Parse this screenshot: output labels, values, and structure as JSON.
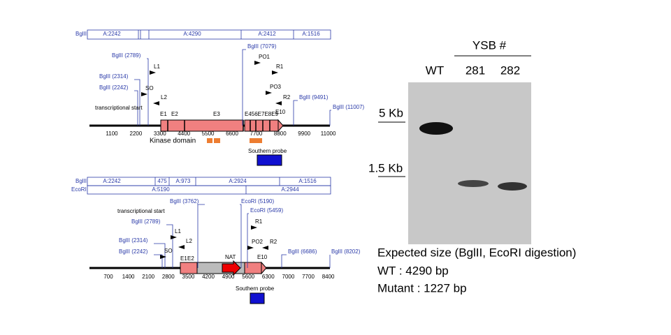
{
  "top_map": {
    "enzyme": "BglII",
    "fragments": [
      "A:2242",
      "A:4290",
      "A:2412",
      "A:1516"
    ],
    "sites": [
      "BglII (2789)",
      "BglII (2314)",
      "BglII (2242)",
      "BglII (7079)",
      "BglII (9491)",
      "BglII (11007)"
    ],
    "primers": [
      "L1",
      "SO",
      "L2",
      "PO1",
      "R1",
      "PO3",
      "R2"
    ],
    "transcriptional_start": "transcriptional start",
    "exons": [
      "E1",
      "E2",
      "E3",
      "E456E7E8E9",
      "E10"
    ],
    "scale": [
      1100,
      2200,
      3300,
      4400,
      5500,
      6600,
      7700,
      8800,
      9900,
      11000
    ],
    "kinase_domain": "Kinase domain",
    "southern_probe": "Southern probe"
  },
  "bottom_map": {
    "bglii_label": "BglII",
    "bglii_fragments": [
      "A:2242",
      "475",
      "A:973",
      "A:2924",
      "A:1516"
    ],
    "ecori_label": "EcoRI",
    "ecori_fragments": [
      "A:5190",
      "A:2944"
    ],
    "sites": [
      "BglII (3762)",
      "EcoRI (5190)",
      "EcoRI (5459)",
      "BglII (2789)",
      "BglII (2314)",
      "BglII (2242)",
      "BglII (6686)",
      "BglII (8202)"
    ],
    "primers": [
      "L1",
      "SO",
      "L2",
      "R1",
      "PO2",
      "R2"
    ],
    "transcriptional_start": "transcriptional start",
    "marker": "NAT",
    "exons": [
      "E1",
      "E2",
      "E10"
    ],
    "scale": [
      700,
      1400,
      2100,
      2800,
      3500,
      4200,
      4900,
      5600,
      6300,
      7000,
      7700,
      8400
    ],
    "southern_probe": "Southern probe"
  },
  "gel": {
    "header": "YSB #",
    "lanes": [
      "WT",
      "281",
      "282"
    ],
    "markers": [
      "5 Kb",
      "1.5 Kb"
    ]
  },
  "caption": {
    "title": "Expected size (BglII, EcoRI digestion)",
    "lines": [
      "WT : 4290 bp",
      "Mutant : 1227 bp"
    ]
  }
}
